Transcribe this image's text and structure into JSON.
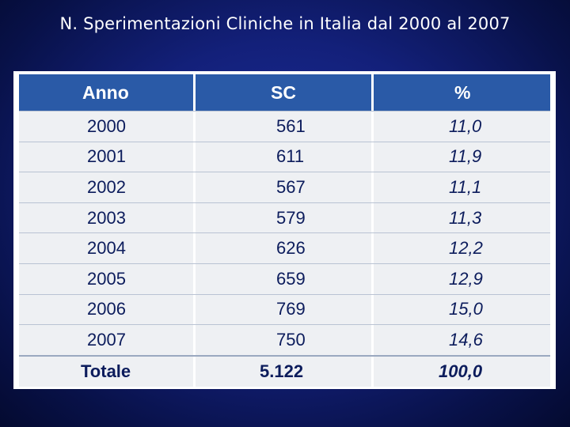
{
  "title": "N. Sperimentazioni Cliniche in Italia dal 2000 al 2007",
  "table": {
    "headers": [
      "Anno",
      "SC",
      "%"
    ],
    "rows": [
      [
        "2000",
        "561",
        "11,0"
      ],
      [
        "2001",
        "611",
        "11,9"
      ],
      [
        "2002",
        "567",
        "11,1"
      ],
      [
        "2003",
        "579",
        "11,3"
      ],
      [
        "2004",
        "626",
        "12,2"
      ],
      [
        "2005",
        "659",
        "12,9"
      ],
      [
        "2006",
        "769",
        "15,0"
      ],
      [
        "2007",
        "750",
        "14,6"
      ]
    ],
    "total": [
      "Totale",
      "5.122",
      "100,0"
    ]
  },
  "colors": {
    "background": "#13207a",
    "header": "#2a5aa7",
    "row": "#eef0f3",
    "text": "#0c1c5c"
  }
}
